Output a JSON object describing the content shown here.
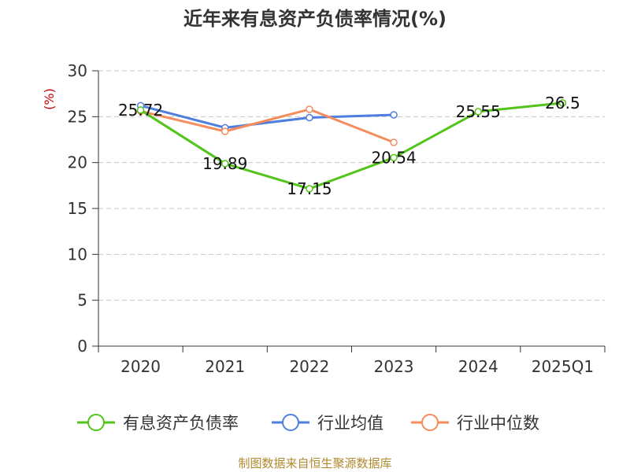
{
  "chart_data": {
    "type": "line",
    "title": "近年来有息资产负债率情况(%)",
    "ylabel": "(%)",
    "xlabel": "",
    "categories": [
      "2020",
      "2021",
      "2022",
      "2023",
      "2024",
      "2025Q1"
    ],
    "ylim": [
      0,
      30
    ],
    "yticks": [
      0,
      5,
      10,
      15,
      20,
      25,
      30
    ],
    "grid": true,
    "legend_position": "bottom",
    "series": [
      {
        "name": "有息资产负债率",
        "color": "#52c41a",
        "values": [
          25.72,
          19.89,
          17.15,
          20.54,
          25.55,
          26.5
        ],
        "labels": [
          "25.72",
          "19.89",
          "17.15",
          "20.54",
          "25.55",
          "26.5"
        ]
      },
      {
        "name": "行业均值",
        "color": "#4f7fde",
        "values": [
          26.2,
          23.8,
          24.9,
          25.2,
          null,
          null
        ]
      },
      {
        "name": "行业中位数",
        "color": "#f58c5d",
        "values": [
          25.6,
          23.4,
          25.8,
          22.2,
          null,
          null
        ]
      }
    ],
    "source": "制图数据来自恒生聚源数据库"
  }
}
